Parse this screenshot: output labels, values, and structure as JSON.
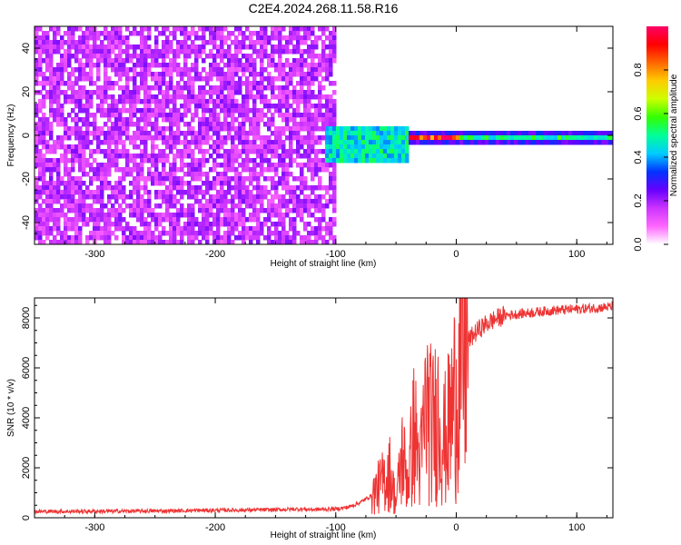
{
  "title": "C2E4.2024.268.11.58.R16",
  "colors": {
    "snr_line": "#ee3333",
    "colormap": [
      "#ffffff",
      "#ff66ff",
      "#cc33ff",
      "#6600ff",
      "#0033ff",
      "#00ccff",
      "#00ff99",
      "#33ff00",
      "#ccff00",
      "#ffcc00",
      "#ff6600",
      "#ff0000",
      "#ff0066"
    ]
  },
  "chart_data": [
    {
      "type": "heatmap",
      "xlabel": "Height of straight line (km)",
      "ylabel": "Frequency (Hz)",
      "xlim": [
        -350,
        130
      ],
      "ylim": [
        -50,
        50
      ],
      "xticks": [
        -300,
        -200,
        -100,
        0,
        100
      ],
      "yticks": [
        -40,
        -20,
        0,
        20,
        40
      ],
      "xtick_labels": [
        "-300",
        "-200",
        "-100",
        "0",
        "100"
      ],
      "ytick_labels": [
        "-40",
        "-20",
        "0",
        "20",
        "40"
      ],
      "colorbar": {
        "label": "Normalized spectral amplitude",
        "range": [
          0,
          1
        ],
        "ticks": [
          0.0,
          0.2,
          0.4,
          0.6,
          0.8
        ],
        "tick_labels": [
          "0.0",
          "0.2",
          "0.4",
          "0.6",
          "0.8"
        ]
      },
      "regions": [
        {
          "x": [
            -350,
            -100
          ],
          "freq": [
            -50,
            50
          ],
          "amplitude": 0.18
        },
        {
          "x": [
            -100,
            130
          ],
          "freq": [
            -3,
            3
          ],
          "amplitude": 0.3
        },
        {
          "x": [
            -110,
            -40
          ],
          "freq": [
            -12,
            6
          ],
          "amplitude": 0.5
        },
        {
          "x": [
            -40,
            130
          ],
          "freq": [
            -2,
            2
          ],
          "amplitude": 0.55
        },
        {
          "x": [
            -40,
            0
          ],
          "freq": [
            -1,
            1
          ],
          "amplitude": 0.95
        }
      ]
    },
    {
      "type": "line",
      "xlabel": "Height of straight line (km)",
      "ylabel": "SNR (10 * v/v)",
      "xlim": [
        -350,
        130
      ],
      "ylim": [
        0,
        8800
      ],
      "xticks": [
        -300,
        -200,
        -100,
        0,
        100
      ],
      "yticks": [
        0,
        2000,
        4000,
        6000,
        8000
      ],
      "xtick_labels": [
        "-300",
        "-200",
        "-100",
        "0",
        "100"
      ],
      "ytick_labels": [
        "0",
        "2000",
        "4000",
        "6000",
        "8000"
      ],
      "series": [
        {
          "x": [
            -350,
            -300,
            -250,
            -200,
            -150,
            -130,
            -120,
            -100,
            -90,
            -80,
            -70,
            -60,
            -55,
            -50,
            -45,
            -40,
            -35,
            -30,
            -25,
            -20,
            -15,
            -10,
            -5,
            0,
            5,
            10,
            20,
            30,
            40,
            60,
            80,
            100,
            130
          ],
          "y": [
            250,
            260,
            270,
            300,
            320,
            350,
            330,
            350,
            420,
            600,
            900,
            1500,
            1800,
            600,
            2500,
            1500,
            3500,
            2000,
            4500,
            3500,
            4200,
            3000,
            3800,
            5200,
            6200,
            7100,
            7600,
            7900,
            8100,
            8200,
            8300,
            8350,
            8450
          ]
        }
      ]
    }
  ]
}
